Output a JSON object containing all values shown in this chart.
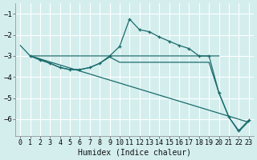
{
  "xlabel": "Humidex (Indice chaleur)",
  "bg_color": "#d4eeee",
  "grid_color": "#ffffff",
  "line_color": "#1a6b6b",
  "xlim": [
    -0.5,
    23.5
  ],
  "ylim": [
    -6.8,
    -0.5
  ],
  "yticks": [
    -6,
    -5,
    -4,
    -3,
    -2,
    -1
  ],
  "xticks": [
    0,
    1,
    2,
    3,
    4,
    5,
    6,
    7,
    8,
    9,
    10,
    11,
    12,
    13,
    14,
    15,
    16,
    17,
    18,
    19,
    20,
    21,
    22,
    23
  ],
  "line1_x": [
    0,
    1,
    2,
    3,
    4,
    5,
    6,
    7,
    8,
    9,
    10,
    11,
    12,
    13,
    14,
    15,
    16,
    17,
    18,
    19,
    20
  ],
  "line1_y": [
    -2.5,
    -3.0,
    -3.0,
    -3.0,
    -3.0,
    -3.0,
    -3.0,
    -3.0,
    -3.0,
    -3.0,
    -3.0,
    -3.0,
    -3.0,
    -3.0,
    -3.0,
    -3.0,
    -3.0,
    -3.0,
    -3.0,
    -3.0,
    -3.0
  ],
  "line2_x": [
    1,
    2,
    3,
    4,
    5,
    6,
    7,
    8,
    9,
    10,
    11,
    12,
    13,
    14,
    15,
    16,
    17,
    18,
    19,
    20,
    21,
    22,
    23
  ],
  "line2_y": [
    -3.0,
    -3.2,
    -3.35,
    -3.55,
    -3.65,
    -3.65,
    -3.55,
    -3.35,
    -3.0,
    -2.55,
    -1.25,
    -1.75,
    -1.85,
    -2.1,
    -2.3,
    -2.5,
    -2.65,
    -3.0,
    -3.0,
    -4.75,
    -5.9,
    -6.55,
    -6.05
  ],
  "line3_x": [
    1,
    23
  ],
  "line3_y": [
    -3.0,
    -6.15
  ],
  "line4_x": [
    1,
    2,
    3,
    4,
    5,
    6,
    7,
    8,
    9,
    10,
    11,
    12,
    13,
    14,
    15,
    16,
    17,
    18,
    19,
    20,
    21,
    22,
    23
  ],
  "line4_y": [
    -3.0,
    -3.15,
    -3.35,
    -3.55,
    -3.65,
    -3.65,
    -3.55,
    -3.35,
    -3.05,
    -3.3,
    -3.3,
    -3.3,
    -3.3,
    -3.3,
    -3.3,
    -3.3,
    -3.3,
    -3.3,
    -3.3,
    -4.75,
    -5.9,
    -6.6,
    -6.1
  ]
}
